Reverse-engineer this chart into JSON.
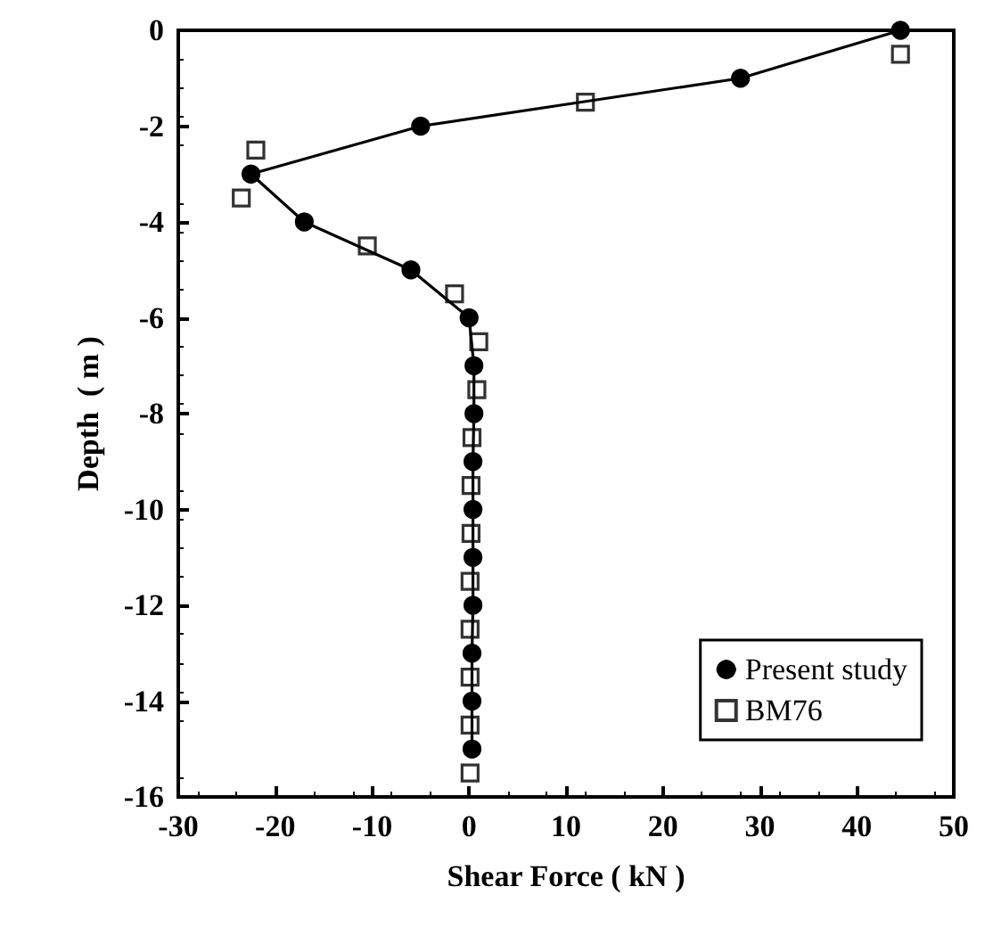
{
  "chart_data": {
    "type": "line",
    "xlabel": "Shear Force ( kN )",
    "ylabel": "Depth  ( m )",
    "xlim": [
      -30,
      50
    ],
    "xticks": [
      -30,
      -20,
      -10,
      0,
      10,
      20,
      30,
      40,
      50
    ],
    "ylim": [
      -16,
      0
    ],
    "yticks": [
      -16,
      -14,
      -12,
      -10,
      -8,
      -6,
      -4,
      -2,
      0
    ],
    "grid": false,
    "legend": "bottom right",
    "series": [
      {
        "name": "Present study",
        "marker": "circle",
        "line_style": "solid",
        "color": "#000000",
        "x": [
          44.5,
          28,
          -5,
          -22.5,
          -17,
          -6,
          0,
          0.5,
          0.5,
          0.4,
          0.4,
          0.4,
          0.4,
          0.3,
          0.3,
          0.3
        ],
        "values": [
          0,
          -1,
          -2,
          -3,
          -4,
          -5,
          -6,
          -7,
          -8,
          -9,
          -10,
          -11,
          -12,
          -13,
          -14,
          -15
        ]
      },
      {
        "name": "BM76",
        "type": "scatter",
        "marker": "square",
        "color": "#000000",
        "x": [
          44.5,
          12,
          -22,
          -23.5,
          -10.5,
          -1.5,
          1,
          0.8,
          0.3,
          0.2,
          0.2,
          0.1,
          0.1,
          0.1,
          0.1,
          0.1
        ],
        "values": [
          -0.5,
          -1.5,
          -2.5,
          -3.5,
          -4.5,
          -5.5,
          -6.5,
          -7.5,
          -8.5,
          -9.5,
          -10.5,
          -11.5,
          -12.5,
          -13.5,
          -14.5,
          -15.5
        ]
      }
    ]
  }
}
